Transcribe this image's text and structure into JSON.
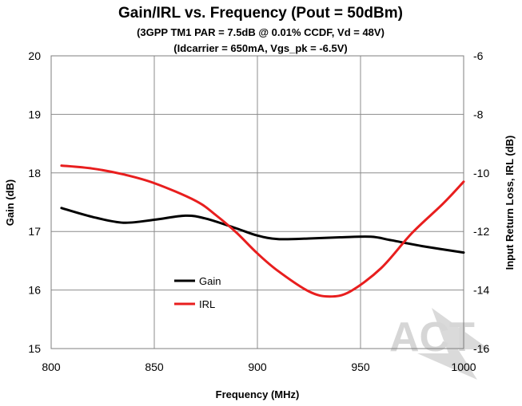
{
  "chart_data": {
    "type": "line",
    "title": "Gain/IRL vs. Frequency (Pout = 50dBm)",
    "subtitle_lines": [
      "(3GPP TM1 PAR = 7.5dB @ 0.01% CCDF, Vd = 48V)",
      "(Idcarrier = 650mA, Vgs_pk = -6.5V)"
    ],
    "xlabel": "Frequency (MHz)",
    "ylabel_left": "Gain (dB)",
    "ylabel_right": "Input Return Loss, IRL (dB)",
    "xlim": [
      800,
      1000
    ],
    "ylim_left": [
      15,
      20
    ],
    "ylim_right": [
      -16,
      -6
    ],
    "x_ticks": [
      800,
      850,
      900,
      950,
      1000
    ],
    "y_ticks_left": [
      15,
      16,
      17,
      18,
      19,
      20
    ],
    "y_ticks_right": [
      -16,
      -14,
      -12,
      -10,
      -8,
      -6
    ],
    "grid": true,
    "legend_position": "center-left",
    "watermark": "ACT",
    "series": [
      {
        "name": "Gain",
        "axis": "left",
        "color": "#000000",
        "x": [
          805,
          820,
          835,
          850,
          865,
          875,
          890,
          900,
          910,
          925,
          940,
          955,
          965,
          980,
          1000
        ],
        "y": [
          17.4,
          17.25,
          17.15,
          17.2,
          17.27,
          17.22,
          17.05,
          16.93,
          16.87,
          16.88,
          16.9,
          16.91,
          16.85,
          16.75,
          16.64
        ]
      },
      {
        "name": "IRL",
        "axis": "right",
        "color": "#e81e1e",
        "x": [
          805,
          820,
          835,
          850,
          870,
          880,
          890,
          900,
          910,
          925,
          935,
          945,
          960,
          975,
          990,
          1000
        ],
        "y": [
          -9.75,
          -9.85,
          -10.05,
          -10.35,
          -10.95,
          -11.45,
          -12.05,
          -12.75,
          -13.35,
          -14.05,
          -14.22,
          -14.05,
          -13.25,
          -12.05,
          -11.05,
          -10.3
        ]
      }
    ]
  }
}
